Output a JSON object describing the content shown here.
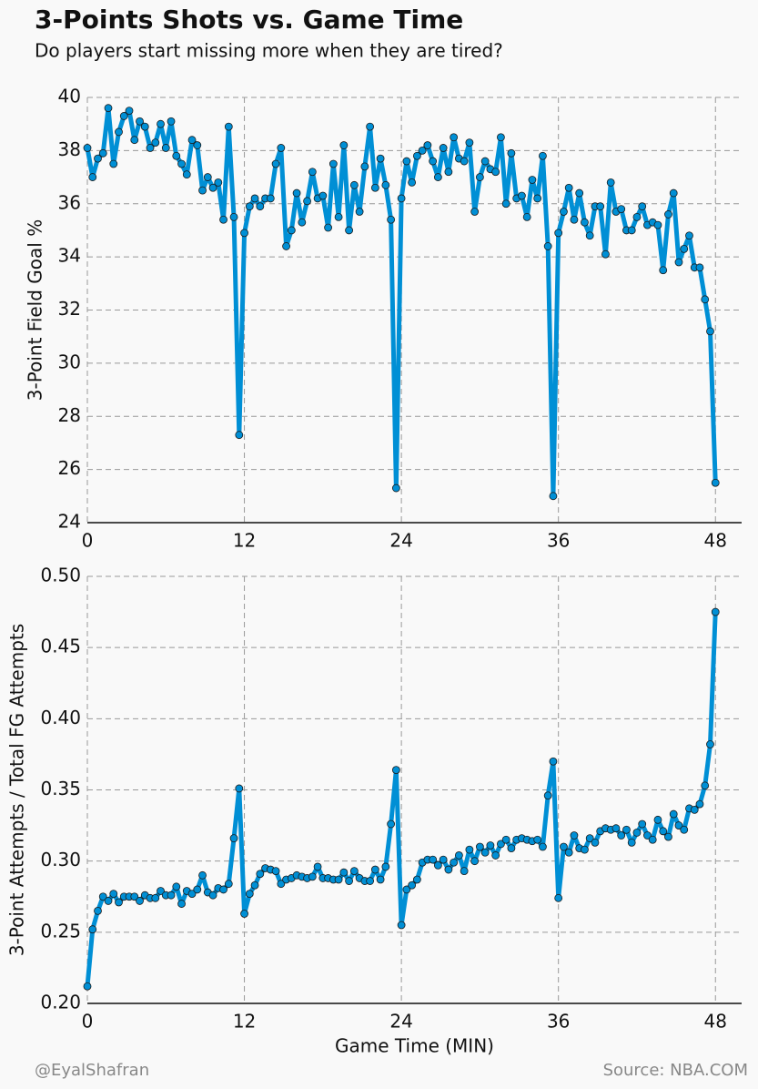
{
  "title": "3-Points Shots vs. Game Time",
  "subtitle": "Do players start missing more when they are tired?",
  "credit": "@EyalShafran",
  "source": "Source: NBA.COM",
  "chart_data": [
    {
      "type": "line",
      "ylabel": "3-Point Field Goal %",
      "color": "#008fd5",
      "grid": true,
      "x": [
        0,
        0.4,
        0.8,
        1.2,
        1.6,
        2,
        2.4,
        2.8,
        3.2,
        3.6,
        4,
        4.4,
        4.8,
        5.2,
        5.6,
        6,
        6.4,
        6.8,
        7.2,
        7.6,
        8,
        8.4,
        8.8,
        9.2,
        9.6,
        10,
        10.4,
        10.8,
        11.2,
        11.6,
        12,
        12.4,
        12.8,
        13.2,
        13.6,
        14,
        14.4,
        14.8,
        15.2,
        15.6,
        16,
        16.4,
        16.8,
        17.2,
        17.6,
        18,
        18.4,
        18.8,
        19.2,
        19.6,
        20,
        20.4,
        20.8,
        21.2,
        21.6,
        22,
        22.4,
        22.8,
        23.2,
        23.6,
        24,
        24.4,
        24.8,
        25.2,
        25.6,
        26,
        26.4,
        26.8,
        27.2,
        27.6,
        28,
        28.4,
        28.8,
        29.2,
        29.6,
        30,
        30.4,
        30.8,
        31.2,
        31.6,
        32,
        32.4,
        32.8,
        33.2,
        33.6,
        34,
        34.4,
        34.8,
        35.2,
        35.6,
        36,
        36.4,
        36.8,
        37.2,
        37.6,
        38,
        38.4,
        38.8,
        39.2,
        39.6,
        40,
        40.4,
        40.8,
        41.2,
        41.6,
        42,
        42.4,
        42.8,
        43.2,
        43.6,
        44,
        44.4,
        44.8,
        45.2,
        45.6,
        46,
        46.4,
        46.8,
        47.2,
        47.6,
        48
      ],
      "values": [
        38.1,
        37.0,
        37.7,
        37.9,
        39.6,
        37.5,
        38.7,
        39.3,
        39.5,
        38.4,
        39.1,
        38.9,
        38.1,
        38.3,
        39.0,
        38.1,
        39.1,
        37.8,
        37.5,
        37.1,
        38.4,
        38.2,
        36.5,
        37.0,
        36.6,
        36.8,
        35.4,
        38.9,
        35.5,
        27.3,
        34.9,
        35.9,
        36.2,
        35.9,
        36.2,
        36.2,
        37.5,
        38.1,
        34.4,
        35.0,
        36.4,
        35.3,
        36.1,
        37.2,
        36.2,
        36.3,
        35.1,
        37.5,
        35.5,
        38.2,
        35.0,
        36.7,
        35.7,
        37.4,
        38.9,
        36.6,
        37.7,
        36.7,
        35.4,
        25.3,
        36.2,
        37.6,
        36.8,
        37.8,
        38.0,
        38.2,
        37.6,
        37.0,
        38.1,
        37.2,
        38.5,
        37.7,
        37.6,
        38.3,
        35.7,
        37.0,
        37.6,
        37.3,
        37.2,
        38.5,
        36.0,
        37.9,
        36.2,
        36.3,
        35.5,
        36.9,
        36.2,
        37.8,
        34.4,
        25.0,
        34.9,
        35.7,
        36.6,
        35.4,
        36.4,
        35.3,
        34.8,
        35.9,
        35.9,
        34.1,
        36.8,
        35.7,
        35.8,
        35.0,
        35.0,
        35.5,
        35.9,
        35.2,
        35.3,
        35.2,
        33.5,
        35.6,
        36.4,
        33.8,
        34.3,
        34.8,
        33.6,
        33.6,
        32.4,
        31.2,
        25.5
      ],
      "xlim": [
        0,
        50
      ],
      "xticks": [
        0,
        12,
        24,
        36,
        48
      ],
      "ylim": [
        24,
        40
      ],
      "yticks": [
        24,
        26,
        28,
        30,
        32,
        34,
        36,
        38,
        40
      ]
    },
    {
      "type": "line",
      "ylabel": "3-Point Attempts / Total FG Attempts",
      "xlabel": "Game Time (MIN)",
      "color": "#008fd5",
      "grid": true,
      "x": [
        0,
        0.4,
        0.8,
        1.2,
        1.6,
        2,
        2.4,
        2.8,
        3.2,
        3.6,
        4,
        4.4,
        4.8,
        5.2,
        5.6,
        6,
        6.4,
        6.8,
        7.2,
        7.6,
        8,
        8.4,
        8.8,
        9.2,
        9.6,
        10,
        10.4,
        10.8,
        11.2,
        11.6,
        12,
        12.4,
        12.8,
        13.2,
        13.6,
        14,
        14.4,
        14.8,
        15.2,
        15.6,
        16,
        16.4,
        16.8,
        17.2,
        17.6,
        18,
        18.4,
        18.8,
        19.2,
        19.6,
        20,
        20.4,
        20.8,
        21.2,
        21.6,
        22,
        22.4,
        22.8,
        23.2,
        23.6,
        24,
        24.4,
        24.8,
        25.2,
        25.6,
        26,
        26.4,
        26.8,
        27.2,
        27.6,
        28,
        28.4,
        28.8,
        29.2,
        29.6,
        30,
        30.4,
        30.8,
        31.2,
        31.6,
        32,
        32.4,
        32.8,
        33.2,
        33.6,
        34,
        34.4,
        34.8,
        35.2,
        35.6,
        36,
        36.4,
        36.8,
        37.2,
        37.6,
        38,
        38.4,
        38.8,
        39.2,
        39.6,
        40,
        40.4,
        40.8,
        41.2,
        41.6,
        42,
        42.4,
        42.8,
        43.2,
        43.6,
        44,
        44.4,
        44.8,
        45.2,
        45.6,
        46,
        46.4,
        46.8,
        47.2,
        47.6,
        48
      ],
      "values": [
        0.212,
        0.252,
        0.265,
        0.275,
        0.272,
        0.277,
        0.271,
        0.275,
        0.275,
        0.275,
        0.272,
        0.276,
        0.274,
        0.274,
        0.279,
        0.276,
        0.276,
        0.282,
        0.27,
        0.279,
        0.277,
        0.28,
        0.29,
        0.278,
        0.276,
        0.281,
        0.28,
        0.284,
        0.316,
        0.351,
        0.263,
        0.277,
        0.283,
        0.291,
        0.295,
        0.294,
        0.293,
        0.284,
        0.287,
        0.288,
        0.29,
        0.289,
        0.288,
        0.289,
        0.296,
        0.288,
        0.288,
        0.287,
        0.287,
        0.292,
        0.286,
        0.293,
        0.288,
        0.286,
        0.286,
        0.294,
        0.287,
        0.296,
        0.326,
        0.364,
        0.255,
        0.28,
        0.283,
        0.287,
        0.299,
        0.301,
        0.301,
        0.297,
        0.301,
        0.294,
        0.299,
        0.304,
        0.293,
        0.308,
        0.3,
        0.31,
        0.306,
        0.311,
        0.304,
        0.312,
        0.315,
        0.309,
        0.315,
        0.316,
        0.315,
        0.314,
        0.315,
        0.31,
        0.346,
        0.37,
        0.274,
        0.31,
        0.306,
        0.318,
        0.309,
        0.308,
        0.316,
        0.313,
        0.321,
        0.323,
        0.322,
        0.323,
        0.318,
        0.322,
        0.313,
        0.32,
        0.326,
        0.318,
        0.315,
        0.329,
        0.321,
        0.317,
        0.333,
        0.325,
        0.322,
        0.337,
        0.336,
        0.34,
        0.353,
        0.382,
        0.475
      ],
      "xlim": [
        0,
        50
      ],
      "xticks": [
        0,
        12,
        24,
        36,
        48
      ],
      "ylim": [
        0.2,
        0.5
      ],
      "yticks": [
        {
          "value": 0.2,
          "label": "0.20"
        },
        0.25,
        {
          "value": 0.3,
          "label": "0.30"
        },
        0.35,
        {
          "value": 0.4,
          "label": "0.40"
        },
        0.45,
        {
          "value": 0.5,
          "label": "0.50"
        }
      ]
    }
  ]
}
